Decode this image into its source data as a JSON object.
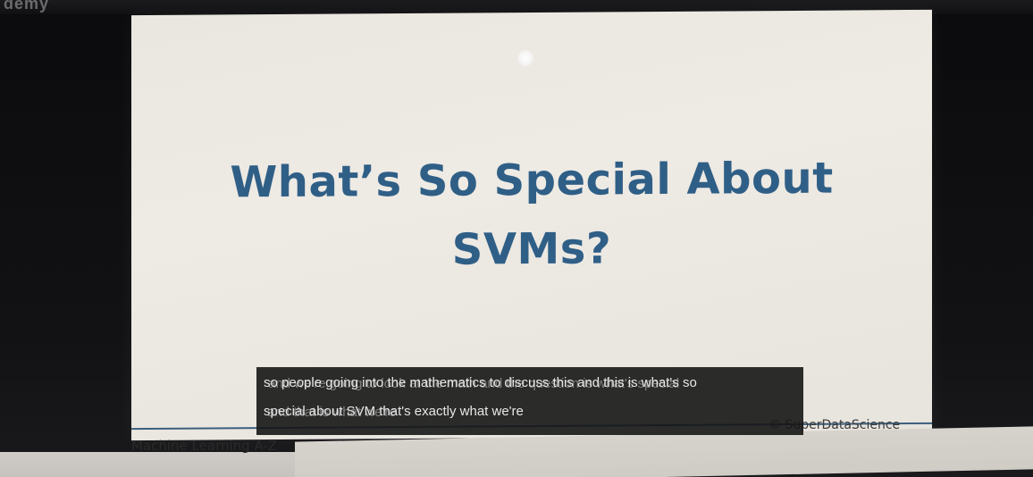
{
  "brand": {
    "top_logo": "demy"
  },
  "slide": {
    "title": "What’s So Special About SVMs?",
    "footer_left": "Machine Learning A-Z",
    "footer_right": "© SuperDataScience"
  },
  "captions": {
    "line1": "so people going into the mathematics to discuss this and this is what's so",
    "line2": "special about SVM that's exactly what we're",
    "ghost1": "and we're going to look at the math and the question is what's special",
    "ghost2": "and that is what we're"
  },
  "colors": {
    "title": "#2f5f86",
    "slide_background": "#ece8e2",
    "caption_background": "#161616",
    "frame": "#0d0d0f"
  }
}
